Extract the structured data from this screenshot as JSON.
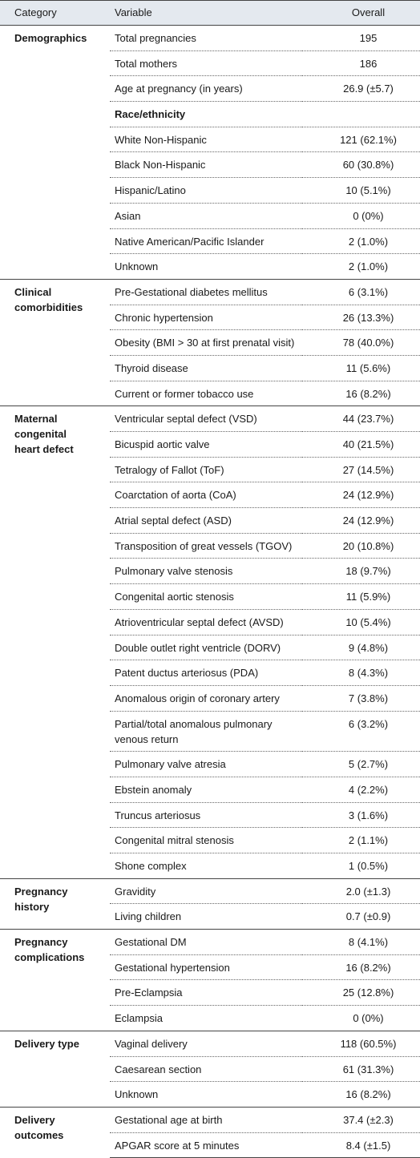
{
  "table": {
    "header": [
      "Category",
      "Variable",
      "Overall"
    ],
    "groups": [
      {
        "category": "Demographics",
        "rows": [
          [
            "Total pregnancies",
            "195"
          ],
          [
            "Total mothers",
            "186"
          ],
          [
            "Age at pregnancy (in years)",
            "26.9 (±5.7)"
          ],
          [
            "Race/ethnicity"
          ],
          [
            "White Non-Hispanic",
            "121 (62.1%)"
          ],
          [
            "Black Non-Hispanic",
            "60 (30.8%)"
          ],
          [
            "Hispanic/Latino",
            "10 (5.1%)"
          ],
          [
            "Asian",
            "0 (0%)"
          ],
          [
            "Native American/Pacific Islander",
            "2 (1.0%)"
          ],
          [
            "Unknown",
            "2 (1.0%)"
          ]
        ]
      },
      {
        "category": "Clinical comorbidities",
        "rows": [
          [
            "Pre-Gestational diabetes mellitus",
            "6 (3.1%)"
          ],
          [
            "Chronic hypertension",
            "26 (13.3%)"
          ],
          [
            "Obesity (BMI > 30 at first prenatal visit)",
            "78 (40.0%)"
          ],
          [
            "Thyroid disease",
            "11 (5.6%)"
          ],
          [
            "Current or former tobacco use",
            "16 (8.2%)"
          ]
        ]
      },
      {
        "category": "Maternal congenital heart defect",
        "rows": [
          [
            "Ventricular septal defect (VSD)",
            "44 (23.7%)"
          ],
          [
            "Bicuspid aortic valve",
            "40 (21.5%)"
          ],
          [
            "Tetralogy of Fallot (ToF)",
            "27 (14.5%)"
          ],
          [
            "Coarctation of aorta (CoA)",
            "24 (12.9%)"
          ],
          [
            "Atrial septal defect (ASD)",
            "24 (12.9%)"
          ],
          [
            "Transposition of great vessels (TGOV)",
            "20 (10.8%)"
          ],
          [
            "Pulmonary valve stenosis",
            "18 (9.7%)"
          ],
          [
            "Congenital aortic stenosis",
            "11 (5.9%)"
          ],
          [
            "Atrioventricular septal defect (AVSD)",
            "10 (5.4%)"
          ],
          [
            "Double outlet right ventricle (DORV)",
            "9 (4.8%)"
          ],
          [
            "Patent ductus arteriosus (PDA)",
            "8 (4.3%)"
          ],
          [
            "Anomalous origin of coronary artery",
            "7 (3.8%)"
          ],
          [
            "Partial/total anomalous pulmonary venous return",
            "6 (3.2%)"
          ],
          [
            "Pulmonary valve atresia",
            "5 (2.7%)"
          ],
          [
            "Ebstein anomaly",
            "4 (2.2%)"
          ],
          [
            "Truncus arteriosus",
            "3 (1.6%)"
          ],
          [
            "Congenital mitral stenosis",
            "2 (1.1%)"
          ],
          [
            "Shone complex",
            "1 (0.5%)"
          ]
        ]
      },
      {
        "category": "Pregnancy history",
        "rows": [
          [
            "Gravidity",
            "2.0 (±1.3)"
          ],
          [
            "Living children",
            "0.7 (±0.9)"
          ]
        ]
      },
      {
        "category": "Pregnancy complications",
        "rows": [
          [
            "Gestational DM",
            "8 (4.1%)"
          ],
          [
            "Gestational hypertension",
            "16 (8.2%)"
          ],
          [
            "Pre-Eclampsia",
            "25 (12.8%)"
          ],
          [
            "Eclampsia",
            "0 (0%)"
          ]
        ]
      },
      {
        "category": "Delivery type",
        "rows": [
          [
            "Vaginal delivery",
            "118 (60.5%)"
          ],
          [
            "Caesarean section",
            "61 (31.3%)"
          ],
          [
            "Unknown",
            "16 (8.2%)"
          ]
        ]
      },
      {
        "category": "Delivery outcomes",
        "rows": [
          [
            "Gestational age at birth",
            "37.4 (±2.3)"
          ],
          [
            "APGAR score at 5 minutes",
            "8.4 (±1.5)"
          ]
        ]
      }
    ]
  }
}
